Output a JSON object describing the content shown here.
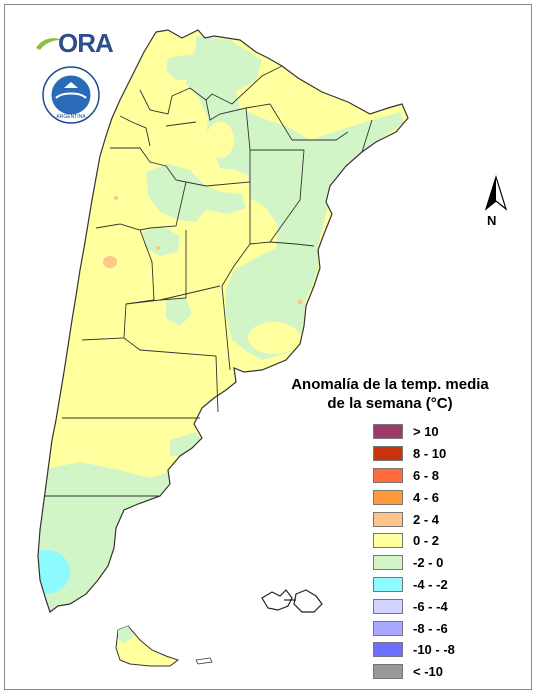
{
  "logo": {
    "text": "ORA",
    "icon": "ora-logo-icon"
  },
  "seal": {
    "icon": "smn-seal-icon",
    "text": "ARGENTINA"
  },
  "north_arrow": {
    "label": "N",
    "icon": "north-arrow-icon"
  },
  "legend": {
    "title_line1": "Anomalía de la temp. media",
    "title_line2": "de la semana (°C)",
    "items": [
      {
        "label": "> 10",
        "color": "#9b3a6b"
      },
      {
        "label": "8 - 10",
        "color": "#c8320f"
      },
      {
        "label": "6 - 8",
        "color": "#ff6a3c"
      },
      {
        "label": "4 - 6",
        "color": "#ff9a3c"
      },
      {
        "label": "2 - 4",
        "color": "#ffc38c"
      },
      {
        "label": "0 - 2",
        "color": "#ffff9e"
      },
      {
        "label": "-2 - 0",
        "color": "#d2f5c8"
      },
      {
        "label": "-4 - -2",
        "color": "#8cfaff"
      },
      {
        "label": "-6 - -4",
        "color": "#d2d2ff"
      },
      {
        "label": "-8 - -6",
        "color": "#a8a8ff"
      },
      {
        "label": "-10 - -8",
        "color": "#6e6eff"
      },
      {
        "label": "< -10",
        "color": "#999999"
      }
    ]
  },
  "map": {
    "region": "Argentina",
    "base_color": "#ffff9e",
    "cool_color": "#d2f5c8",
    "cold_color": "#8cfaff",
    "warm_color": "#ffc38c"
  }
}
